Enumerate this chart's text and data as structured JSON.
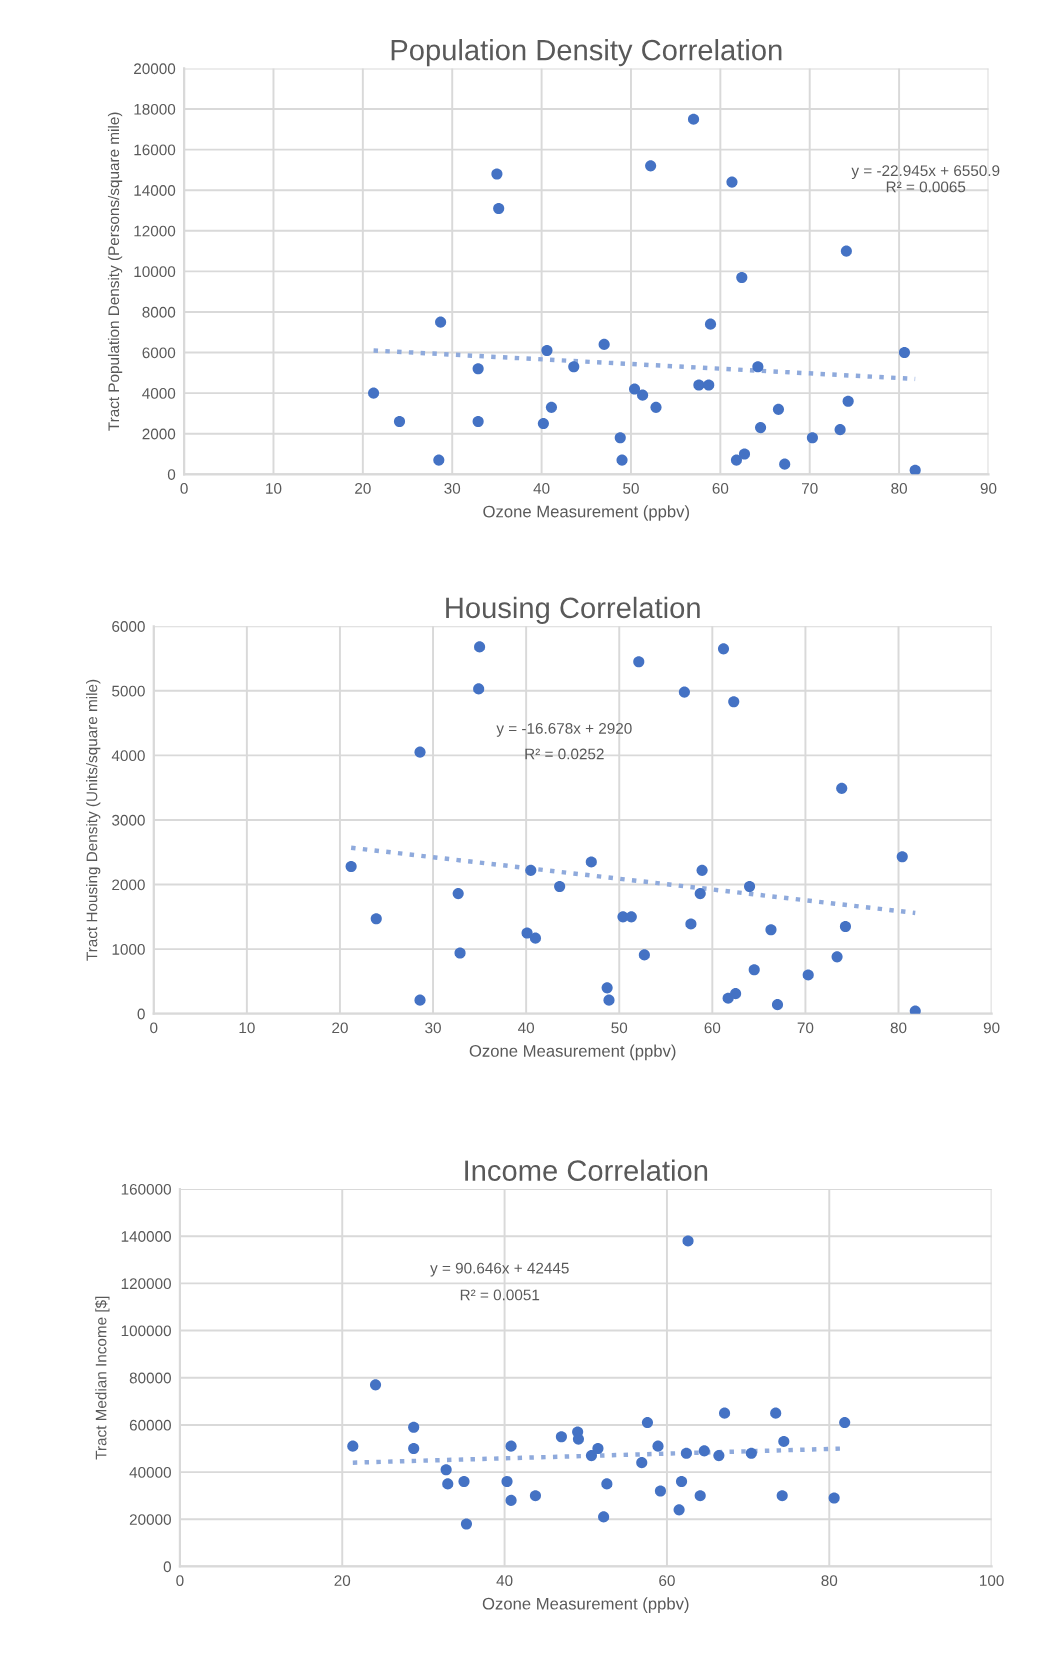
{
  "chart_data": [
    {
      "type": "scatter",
      "title": "Population Density Correlation",
      "xlabel": "Ozone Measurement (ppbv)",
      "ylabel": "Tract Population Density (Persons/square mile)",
      "xlim": [
        0,
        90
      ],
      "xticks": [
        0,
        10,
        20,
        30,
        40,
        50,
        60,
        70,
        80,
        90
      ],
      "ylim": [
        0,
        20000
      ],
      "yticks": [
        0,
        2000,
        4000,
        6000,
        8000,
        10000,
        12000,
        14000,
        16000,
        18000,
        20000
      ],
      "grid": true,
      "series": [
        {
          "marker": "circle",
          "color": "#4472c4",
          "x": [
            21.2,
            24.1,
            28.7,
            28.5,
            32.9,
            32.9,
            35.0,
            35.2,
            40.2,
            40.6,
            41.1,
            43.6,
            47.0,
            48.8,
            49.0,
            50.4,
            51.3,
            52.2,
            52.8,
            57.0,
            57.6,
            58.7,
            58.9,
            61.3,
            61.8,
            62.7,
            62.4,
            64.2,
            64.5,
            66.5,
            67.2,
            70.3,
            73.4,
            74.1,
            74.3,
            80.6,
            81.8
          ],
          "values": [
            4000,
            2600,
            7500,
            700,
            5200,
            2600,
            14800,
            13100,
            2500,
            6100,
            3300,
            5300,
            6400,
            1800,
            700,
            4200,
            3900,
            15200,
            3300,
            17500,
            4400,
            4400,
            7400,
            14400,
            700,
            1000,
            9700,
            5300,
            2300,
            3200,
            500,
            1800,
            2200,
            11000,
            3600,
            6000,
            200
          ]
        },
        {
          "type": "line",
          "color": "#8faadc",
          "line_style": "dotted",
          "x": [
            21.2,
            81.8
          ],
          "values": [
            6100,
            4700
          ]
        }
      ],
      "annotations": [
        "y = -22.945x + 6550.9",
        "R² = 0.0065"
      ]
    },
    {
      "type": "scatter",
      "title": "Housing Correlation",
      "xlabel": "Ozone Measurement (ppbv)",
      "ylabel": "Tract Housing Density (Units/square mile)",
      "xlim": [
        0,
        90
      ],
      "xticks": [
        0,
        10,
        20,
        30,
        40,
        50,
        60,
        70,
        80,
        90
      ],
      "ylim": [
        0,
        6000
      ],
      "yticks": [
        0,
        1000,
        2000,
        3000,
        4000,
        5000,
        6000
      ],
      "grid": true,
      "series": [
        {
          "marker": "circle",
          "color": "#4472c4",
          "x": [
            21.2,
            23.9,
            28.6,
            28.6,
            32.7,
            32.9,
            34.9,
            35.0,
            40.1,
            40.5,
            41.0,
            43.6,
            47.0,
            48.7,
            48.9,
            50.4,
            51.3,
            52.1,
            52.7,
            57.0,
            57.7,
            58.7,
            58.9,
            61.2,
            61.7,
            62.5,
            62.3,
            64.0,
            64.5,
            66.3,
            67.0,
            70.3,
            73.4,
            73.9,
            74.3,
            80.4,
            81.8
          ],
          "values": [
            2280,
            1470,
            4050,
            210,
            1860,
            940,
            5030,
            5680,
            1250,
            2220,
            1170,
            1970,
            2350,
            400,
            210,
            1500,
            1500,
            5450,
            910,
            4980,
            1390,
            1860,
            2220,
            5650,
            240,
            310,
            4830,
            1970,
            680,
            1300,
            140,
            600,
            880,
            3490,
            1350,
            2430,
            40
          ]
        },
        {
          "type": "line",
          "color": "#8faadc",
          "line_style": "dotted",
          "x": [
            21.2,
            81.8
          ],
          "values": [
            2570,
            1560
          ]
        }
      ],
      "annotations": [
        "y = -16.678x + 2920",
        "R² = 0.0252"
      ]
    },
    {
      "type": "scatter",
      "title": "Income Correlation",
      "xlabel": "Ozone Measurement (ppbv)",
      "ylabel": "Tract Median Income [$]",
      "xlim": [
        0,
        100
      ],
      "xticks": [
        0,
        20,
        40,
        60,
        80,
        100
      ],
      "ylim": [
        0,
        160000
      ],
      "yticks": [
        0,
        20000,
        40000,
        60000,
        80000,
        100000,
        120000,
        140000,
        160000
      ],
      "grid": true,
      "series": [
        {
          "marker": "circle",
          "color": "#4472c4",
          "x": [
            21.3,
            24.1,
            28.8,
            28.8,
            32.8,
            33.0,
            35.0,
            35.3,
            40.3,
            40.8,
            40.8,
            43.8,
            47.0,
            49.0,
            49.1,
            50.7,
            51.5,
            52.2,
            52.6,
            56.9,
            57.6,
            58.9,
            59.2,
            61.5,
            61.8,
            62.4,
            62.6,
            64.1,
            64.6,
            66.4,
            67.1,
            70.4,
            73.4,
            74.2,
            74.4,
            80.6,
            81.9
          ],
          "values": [
            51000,
            77000,
            59000,
            50000,
            41000,
            35000,
            36000,
            18000,
            36000,
            51000,
            28000,
            30000,
            55000,
            57000,
            54000,
            47000,
            50000,
            21000,
            35000,
            44000,
            61000,
            51000,
            32000,
            24000,
            36000,
            48000,
            138000,
            30000,
            49000,
            47000,
            65000,
            48000,
            65000,
            30000,
            53000,
            29000,
            61000
          ]
        },
        {
          "type": "line",
          "color": "#8faadc",
          "line_style": "dotted",
          "x": [
            21.3,
            81.9
          ],
          "values": [
            44000,
            50000
          ]
        }
      ],
      "annotations": [
        "y = 90.646x + 42445",
        "R² = 0.0051"
      ]
    }
  ]
}
